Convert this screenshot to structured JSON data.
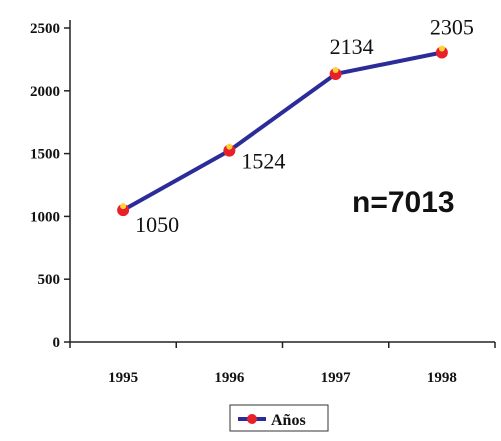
{
  "chart_data": {
    "type": "line",
    "x": [
      "1995",
      "1996",
      "1997",
      "1998"
    ],
    "series": [
      {
        "name": "Años",
        "values": [
          1050,
          1524,
          2134,
          2305
        ]
      }
    ],
    "data_labels": [
      "1050",
      "1524",
      "2134",
      "2305"
    ],
    "y_ticks": [
      "0",
      "500",
      "1000",
      "1500",
      "2000",
      "2500"
    ],
    "ylim": [
      0,
      2500
    ],
    "annotation": "n=7013",
    "legend": {
      "label": "Años",
      "position": "bottom"
    },
    "grid": false,
    "colors": {
      "line": "#2b2b9a",
      "marker": "#e8202a",
      "marker_highlight": "#ffd23a"
    }
  }
}
